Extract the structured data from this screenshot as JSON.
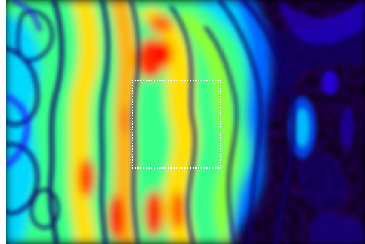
{
  "image": {
    "subject": "interference-fringe-heatmap",
    "colormap": [
      "#000000",
      "#0a0066",
      "#2a00ff",
      "#00a0ff",
      "#00ffff",
      "#39ff8a",
      "#8dff2a",
      "#ffff00",
      "#ffb000",
      "#ff4a00",
      "#ff0000"
    ],
    "selection_box": {
      "border_color": "#ffffff",
      "style": "dotted"
    }
  }
}
